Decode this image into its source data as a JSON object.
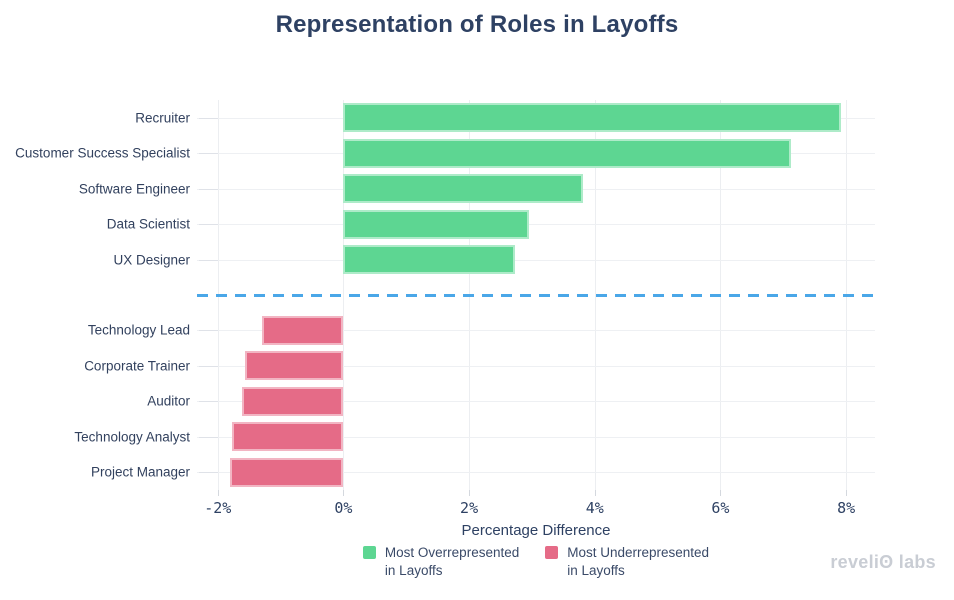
{
  "title": "Representation of Roles in Layoffs",
  "chart_data": {
    "type": "bar",
    "orientation": "horizontal",
    "title": "Representation of Roles in Layoffs",
    "xlabel": "Percentage Difference",
    "ylabel": "",
    "x_range": [
      -2.33,
      8.46
    ],
    "x_ticks": [
      -2,
      0,
      2,
      4,
      6,
      8
    ],
    "x_tick_labels": [
      "-2%",
      "0%",
      "2%",
      "4%",
      "6%",
      "8%"
    ],
    "grid": true,
    "legend_position": "bottom",
    "series": [
      {
        "name": "Most Overrepresented in Layoffs",
        "color": "#5dd692",
        "categories": [
          "Recruiter",
          "Customer Success Specialist",
          "Software Engineer",
          "Data Scientist",
          "UX Designer"
        ],
        "values": [
          7.92,
          7.12,
          3.81,
          2.95,
          2.73
        ]
      },
      {
        "name": "Most Underrepresented in Layoffs",
        "color": "#e56b87",
        "categories": [
          "Technology Lead",
          "Corporate Trainer",
          "Auditor",
          "Technology Analyst",
          "Project Manager"
        ],
        "values": [
          -1.3,
          -1.56,
          -1.62,
          -1.78,
          -1.8
        ]
      }
    ],
    "separator_line": {
      "style": "dashed",
      "color": "#4aa7e8",
      "position": "between series"
    }
  },
  "legend": {
    "items": [
      {
        "label_line1": "Most Overrepresented",
        "label_line2": "in Layoffs",
        "color": "#5dd692"
      },
      {
        "label_line1": "Most Underrepresented",
        "label_line2": "in Layoffs",
        "color": "#e56b87"
      }
    ]
  },
  "logo": {
    "text": "reveliʘ labs"
  }
}
